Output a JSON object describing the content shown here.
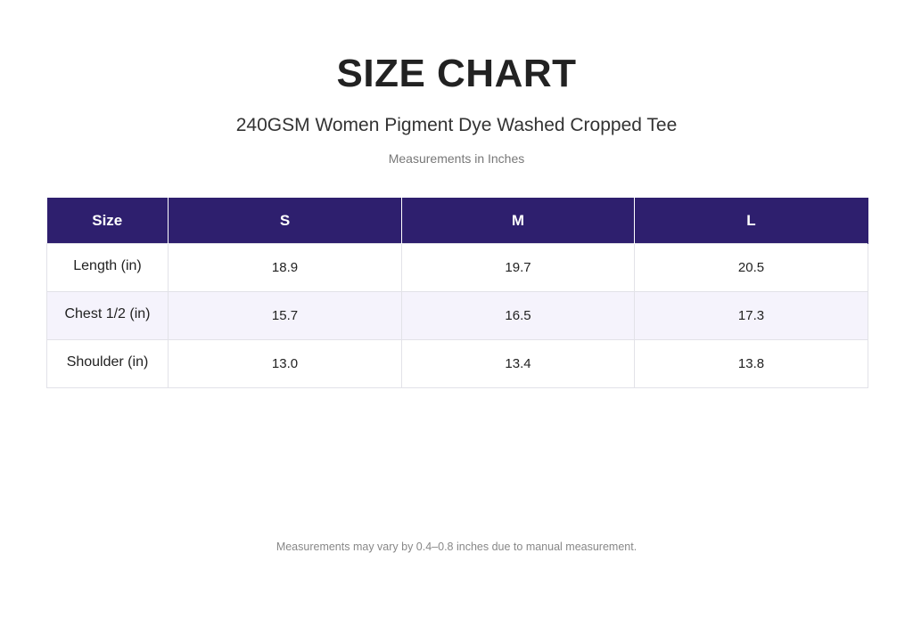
{
  "title": "SIZE CHART",
  "subtitle": "240GSM Women Pigment Dye Washed Cropped Tee",
  "units_note": "Measurements in Inches",
  "table": {
    "headers": [
      "Size",
      "S",
      "M",
      "L"
    ],
    "rows": [
      {
        "label": "Length (in)",
        "values": [
          "18.9",
          "19.7",
          "20.5"
        ]
      },
      {
        "label": "Chest 1/2 (in)",
        "values": [
          "15.7",
          "16.5",
          "17.3"
        ]
      },
      {
        "label": "Shoulder (in)",
        "values": [
          "13.0",
          "13.4",
          "13.8"
        ]
      }
    ]
  },
  "footnote": "Measurements may vary by 0.4–0.8 inches due to manual measurement.",
  "colors": {
    "header_bg": "#2e1f6e",
    "header_text": "#ffffff",
    "alt_row_bg": "#f5f3fc"
  }
}
